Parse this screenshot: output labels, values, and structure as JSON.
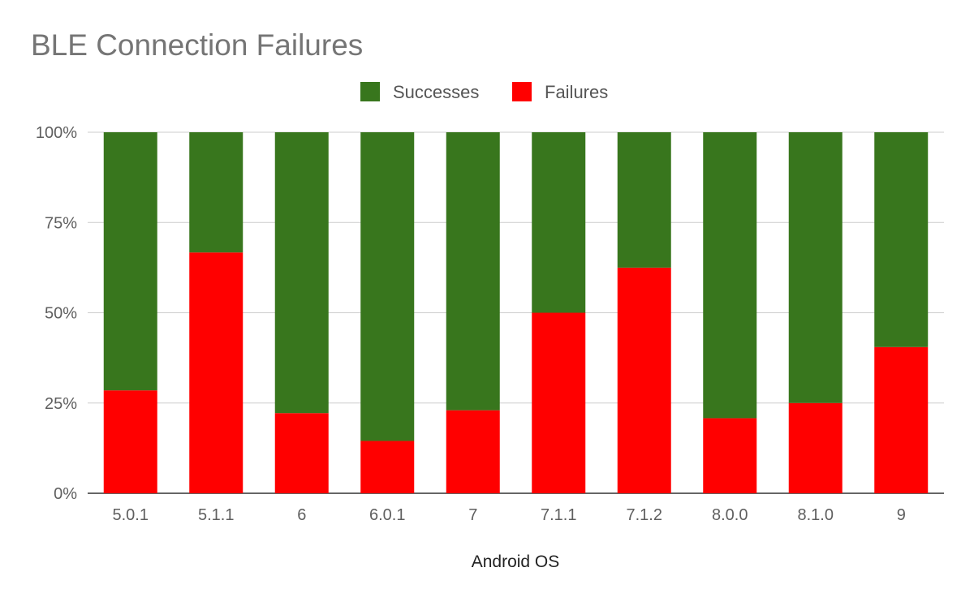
{
  "chart_data": {
    "type": "bar",
    "stacked": true,
    "normalized": true,
    "title": "BLE Connection Failures",
    "xlabel": "Android OS",
    "ylabel": "",
    "categories": [
      "5.0.1",
      "5.1.1",
      "6",
      "6.0.1",
      "7",
      "7.1.1",
      "7.1.2",
      "8.0.0",
      "8.1.0",
      "9"
    ],
    "series": [
      {
        "name": "Failures",
        "color": "#ff0000",
        "values": [
          28.5,
          66.7,
          22.2,
          14.5,
          23.0,
          50.0,
          62.5,
          20.8,
          25.0,
          40.5
        ]
      },
      {
        "name": "Successes",
        "color": "#38761d",
        "values": [
          71.5,
          33.3,
          77.8,
          85.5,
          77.0,
          50.0,
          37.5,
          79.2,
          75.0,
          59.5
        ]
      }
    ],
    "legend_order": [
      "Successes",
      "Failures"
    ],
    "yticks": [
      "0%",
      "25%",
      "50%",
      "75%",
      "100%"
    ],
    "ylim": [
      0,
      100
    ],
    "legend_position": "top-center",
    "grid": true
  }
}
